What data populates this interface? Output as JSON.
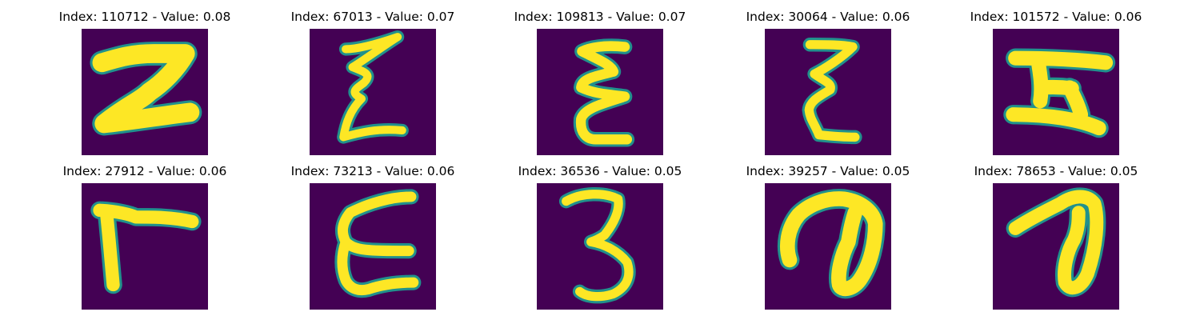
{
  "colors": {
    "background": "#440154",
    "stroke": "#fde725",
    "edge": "#21918c"
  },
  "panels": [
    {
      "title": "Index: 110712 - Value: 0.08",
      "glyph": "z-slanted"
    },
    {
      "title": "Index: 67013 - Value: 0.07",
      "glyph": "z-zigzag"
    },
    {
      "title": "Index: 109813 - Value: 0.07",
      "glyph": "epsilon-narrow"
    },
    {
      "title": "Index: 30064 - Value: 0.06",
      "glyph": "z-epsilon"
    },
    {
      "title": "Index: 101572 - Value: 0.06",
      "glyph": "h-sideways"
    },
    {
      "title": "Index: 27912 - Value: 0.06",
      "glyph": "gamma"
    },
    {
      "title": "Index: 73213 - Value: 0.06",
      "glyph": "epsilon-wide"
    },
    {
      "title": "Index: 36536 - Value: 0.05",
      "glyph": "three"
    },
    {
      "title": "Index: 39257 - Value: 0.05",
      "glyph": "loop-large"
    },
    {
      "title": "Index: 78653 - Value: 0.05",
      "glyph": "loop-small"
    }
  ]
}
